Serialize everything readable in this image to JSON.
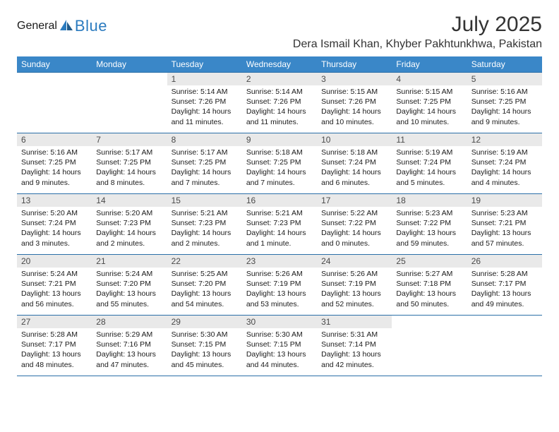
{
  "brand": {
    "part1": "General",
    "part2": "Blue"
  },
  "title": "July 2025",
  "location": "Dera Ismail Khan, Khyber Pakhtunkhwa, Pakistan",
  "colors": {
    "header_bg": "#3a87c8",
    "rule": "#2b6fa8",
    "daynum_bg": "#e9e9e9",
    "logo_gray": "#6a6a6a",
    "logo_blue": "#2b7bbf"
  },
  "day_headers": [
    "Sunday",
    "Monday",
    "Tuesday",
    "Wednesday",
    "Thursday",
    "Friday",
    "Saturday"
  ],
  "weeks": [
    [
      null,
      null,
      {
        "n": "1",
        "sunrise": "5:14 AM",
        "sunset": "7:26 PM",
        "daylight": "14 hours and 11 minutes."
      },
      {
        "n": "2",
        "sunrise": "5:14 AM",
        "sunset": "7:26 PM",
        "daylight": "14 hours and 11 minutes."
      },
      {
        "n": "3",
        "sunrise": "5:15 AM",
        "sunset": "7:26 PM",
        "daylight": "14 hours and 10 minutes."
      },
      {
        "n": "4",
        "sunrise": "5:15 AM",
        "sunset": "7:25 PM",
        "daylight": "14 hours and 10 minutes."
      },
      {
        "n": "5",
        "sunrise": "5:16 AM",
        "sunset": "7:25 PM",
        "daylight": "14 hours and 9 minutes."
      }
    ],
    [
      {
        "n": "6",
        "sunrise": "5:16 AM",
        "sunset": "7:25 PM",
        "daylight": "14 hours and 9 minutes."
      },
      {
        "n": "7",
        "sunrise": "5:17 AM",
        "sunset": "7:25 PM",
        "daylight": "14 hours and 8 minutes."
      },
      {
        "n": "8",
        "sunrise": "5:17 AM",
        "sunset": "7:25 PM",
        "daylight": "14 hours and 7 minutes."
      },
      {
        "n": "9",
        "sunrise": "5:18 AM",
        "sunset": "7:25 PM",
        "daylight": "14 hours and 7 minutes."
      },
      {
        "n": "10",
        "sunrise": "5:18 AM",
        "sunset": "7:24 PM",
        "daylight": "14 hours and 6 minutes."
      },
      {
        "n": "11",
        "sunrise": "5:19 AM",
        "sunset": "7:24 PM",
        "daylight": "14 hours and 5 minutes."
      },
      {
        "n": "12",
        "sunrise": "5:19 AM",
        "sunset": "7:24 PM",
        "daylight": "14 hours and 4 minutes."
      }
    ],
    [
      {
        "n": "13",
        "sunrise": "5:20 AM",
        "sunset": "7:24 PM",
        "daylight": "14 hours and 3 minutes."
      },
      {
        "n": "14",
        "sunrise": "5:20 AM",
        "sunset": "7:23 PM",
        "daylight": "14 hours and 2 minutes."
      },
      {
        "n": "15",
        "sunrise": "5:21 AM",
        "sunset": "7:23 PM",
        "daylight": "14 hours and 2 minutes."
      },
      {
        "n": "16",
        "sunrise": "5:21 AM",
        "sunset": "7:23 PM",
        "daylight": "14 hours and 1 minute."
      },
      {
        "n": "17",
        "sunrise": "5:22 AM",
        "sunset": "7:22 PM",
        "daylight": "14 hours and 0 minutes."
      },
      {
        "n": "18",
        "sunrise": "5:23 AM",
        "sunset": "7:22 PM",
        "daylight": "13 hours and 59 minutes."
      },
      {
        "n": "19",
        "sunrise": "5:23 AM",
        "sunset": "7:21 PM",
        "daylight": "13 hours and 57 minutes."
      }
    ],
    [
      {
        "n": "20",
        "sunrise": "5:24 AM",
        "sunset": "7:21 PM",
        "daylight": "13 hours and 56 minutes."
      },
      {
        "n": "21",
        "sunrise": "5:24 AM",
        "sunset": "7:20 PM",
        "daylight": "13 hours and 55 minutes."
      },
      {
        "n": "22",
        "sunrise": "5:25 AM",
        "sunset": "7:20 PM",
        "daylight": "13 hours and 54 minutes."
      },
      {
        "n": "23",
        "sunrise": "5:26 AM",
        "sunset": "7:19 PM",
        "daylight": "13 hours and 53 minutes."
      },
      {
        "n": "24",
        "sunrise": "5:26 AM",
        "sunset": "7:19 PM",
        "daylight": "13 hours and 52 minutes."
      },
      {
        "n": "25",
        "sunrise": "5:27 AM",
        "sunset": "7:18 PM",
        "daylight": "13 hours and 50 minutes."
      },
      {
        "n": "26",
        "sunrise": "5:28 AM",
        "sunset": "7:17 PM",
        "daylight": "13 hours and 49 minutes."
      }
    ],
    [
      {
        "n": "27",
        "sunrise": "5:28 AM",
        "sunset": "7:17 PM",
        "daylight": "13 hours and 48 minutes."
      },
      {
        "n": "28",
        "sunrise": "5:29 AM",
        "sunset": "7:16 PM",
        "daylight": "13 hours and 47 minutes."
      },
      {
        "n": "29",
        "sunrise": "5:30 AM",
        "sunset": "7:15 PM",
        "daylight": "13 hours and 45 minutes."
      },
      {
        "n": "30",
        "sunrise": "5:30 AM",
        "sunset": "7:15 PM",
        "daylight": "13 hours and 44 minutes."
      },
      {
        "n": "31",
        "sunrise": "5:31 AM",
        "sunset": "7:14 PM",
        "daylight": "13 hours and 42 minutes."
      },
      null,
      null
    ]
  ],
  "labels": {
    "sunrise": "Sunrise:",
    "sunset": "Sunset:",
    "daylight": "Daylight:"
  }
}
